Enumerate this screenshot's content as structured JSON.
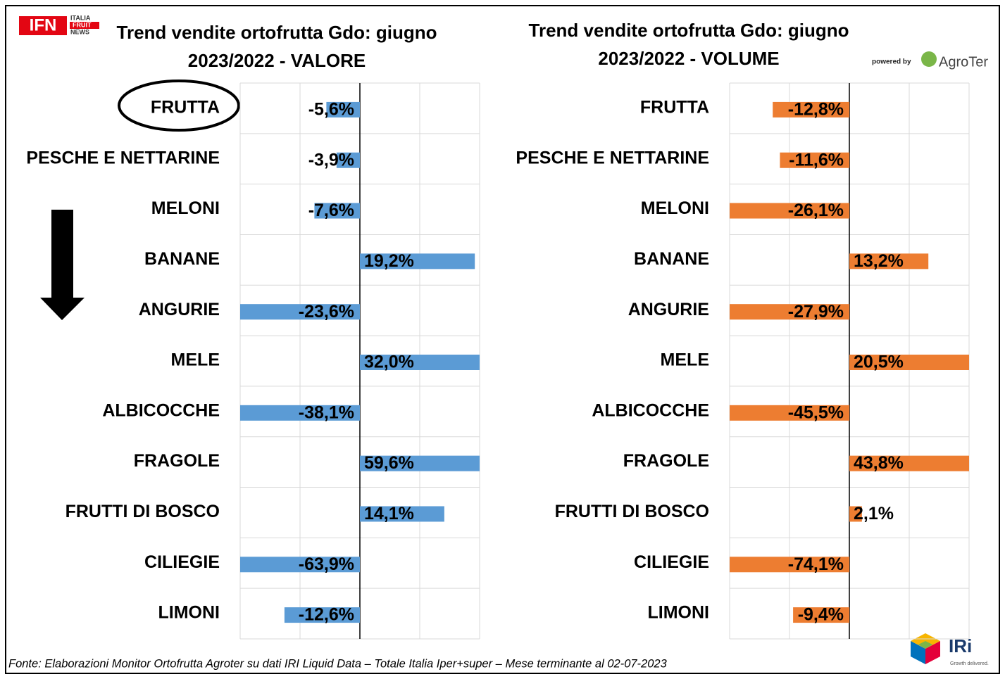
{
  "chart_data": [
    {
      "type": "hbar",
      "title": "Trend vendite ortofrutta Gdo: giugno 2023/2022 - VALORE",
      "categories": [
        "FRUTTA",
        "PESCHE E NETTARINE",
        "MELONI",
        "BANANE",
        "ANGURIE",
        "MELE",
        "ALBICOCCHE",
        "FRAGOLE",
        "FRUTTI DI BOSCO",
        "CILIEGIE",
        "LIMONI"
      ],
      "values": [
        -5.6,
        -3.9,
        -7.6,
        19.2,
        -23.6,
        32.0,
        -38.1,
        59.6,
        14.1,
        -63.9,
        -12.6
      ],
      "value_labels": [
        "-5,6%",
        "-3,9%",
        "-7,6%",
        "19,2%",
        "-23,6%",
        "32,0%",
        "-38,1%",
        "59,6%",
        "14,1%",
        "-63,9%",
        "-12,6%"
      ],
      "color": "#5b9bd5",
      "xlim": [
        -20,
        20
      ],
      "xticks": [
        -20,
        -10,
        0,
        10,
        20
      ],
      "grid": true
    },
    {
      "type": "hbar",
      "title": "Trend vendite ortofrutta Gdo: giugno 2023/2022 - VOLUME",
      "categories": [
        "FRUTTA",
        "PESCHE E NETTARINE",
        "MELONI",
        "BANANE",
        "ANGURIE",
        "MELE",
        "ALBICOCCHE",
        "FRAGOLE",
        "FRUTTI DI BOSCO",
        "CILIEGIE",
        "LIMONI"
      ],
      "values": [
        -12.8,
        -11.6,
        -26.1,
        13.2,
        -27.9,
        20.5,
        -45.5,
        43.8,
        2.1,
        -74.1,
        -9.4
      ],
      "value_labels": [
        "-12,8%",
        "-11,6%",
        "-26,1%",
        "13,2%",
        "-27,9%",
        "20,5%",
        "-45,5%",
        "43,8%",
        "2,1%",
        "-74,1%",
        "-9,4%"
      ],
      "color": "#ed7d31",
      "xlim": [
        -20,
        20
      ],
      "xticks": [
        -20,
        -10,
        0,
        10,
        20
      ],
      "grid": true
    }
  ],
  "source": "Fonte: Elaborazioni Monitor Ortofrutta Agroter su dati IRI Liquid Data – Totale Italia Iper+super – Mese terminante al 02-07-2023",
  "logos": {
    "ifn": "IFN",
    "ifn_line1": "ITALIA",
    "ifn_line2": "FRUIT",
    "ifn_line3": "NEWS",
    "powered_by": "powered by",
    "agroter": "AgroTer",
    "iri": "IRi",
    "iri_tagline": "Growth delivered."
  }
}
